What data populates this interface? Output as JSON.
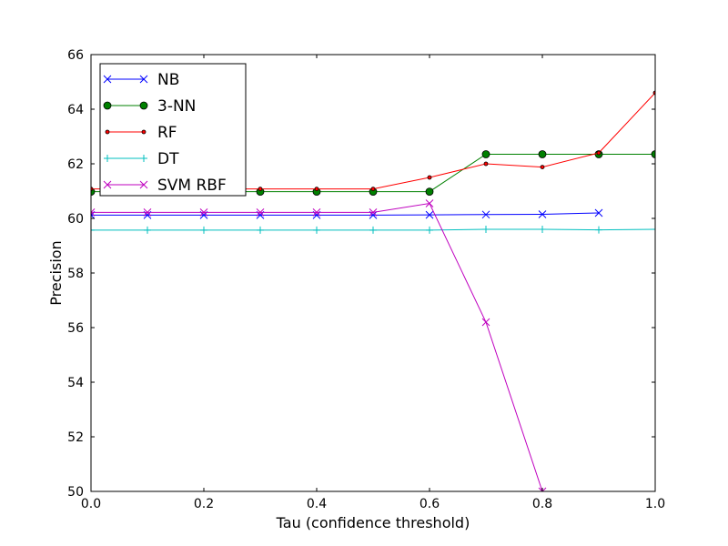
{
  "chart_data": {
    "type": "line",
    "title": "",
    "xlabel": "Tau (confidence threshold)",
    "ylabel": "Precision",
    "xlim": [
      0.0,
      1.0
    ],
    "ylim": [
      50,
      66
    ],
    "xticks": [
      0.0,
      0.2,
      0.4,
      0.6,
      0.8,
      1.0
    ],
    "xtick_labels": [
      "0.0",
      "0.2",
      "0.4",
      "0.6",
      "0.8",
      "1.0"
    ],
    "yticks": [
      50,
      52,
      54,
      56,
      58,
      60,
      62,
      64,
      66
    ],
    "ytick_labels": [
      "50",
      "52",
      "54",
      "56",
      "58",
      "60",
      "62",
      "64",
      "66"
    ],
    "grid": false,
    "legend_position": "top-left",
    "series": [
      {
        "name": "NB",
        "color": "#0000ff",
        "marker": "x",
        "x": [
          0.0,
          0.1,
          0.2,
          0.3,
          0.4,
          0.5,
          0.6,
          0.7,
          0.8,
          0.9
        ],
        "y": [
          60.12,
          60.12,
          60.12,
          60.12,
          60.12,
          60.12,
          60.13,
          60.14,
          60.15,
          60.2
        ]
      },
      {
        "name": "3-NN",
        "color": "#008000",
        "marker": "o",
        "x": [
          0.0,
          0.1,
          0.2,
          0.3,
          0.4,
          0.5,
          0.6,
          0.7,
          0.8,
          0.9,
          1.0
        ],
        "y": [
          60.98,
          60.98,
          60.98,
          60.98,
          60.98,
          60.98,
          60.98,
          62.35,
          62.35,
          62.35,
          62.35
        ]
      },
      {
        "name": "RF",
        "color": "#ff0000",
        "marker": ".",
        "x": [
          0.0,
          0.1,
          0.2,
          0.3,
          0.4,
          0.5,
          0.6,
          0.7,
          0.8,
          0.9,
          1.0
        ],
        "y": [
          61.08,
          61.08,
          61.08,
          61.08,
          61.08,
          61.08,
          61.5,
          62.0,
          61.88,
          62.4,
          64.6
        ]
      },
      {
        "name": "DT",
        "color": "#00bfbf",
        "marker": "+",
        "x": [
          0.0,
          0.1,
          0.2,
          0.3,
          0.4,
          0.5,
          0.6,
          0.7,
          0.8,
          0.9,
          1.0
        ],
        "y": [
          59.57,
          59.57,
          59.57,
          59.57,
          59.57,
          59.57,
          59.57,
          59.6,
          59.6,
          59.58,
          59.6
        ]
      },
      {
        "name": "SVM RBF",
        "color": "#bf00bf",
        "marker": "x",
        "x": [
          0.0,
          0.1,
          0.2,
          0.3,
          0.4,
          0.5,
          0.6,
          0.7,
          0.8
        ],
        "y": [
          60.22,
          60.22,
          60.22,
          60.22,
          60.22,
          60.22,
          60.55,
          56.2,
          50.0
        ]
      }
    ]
  }
}
